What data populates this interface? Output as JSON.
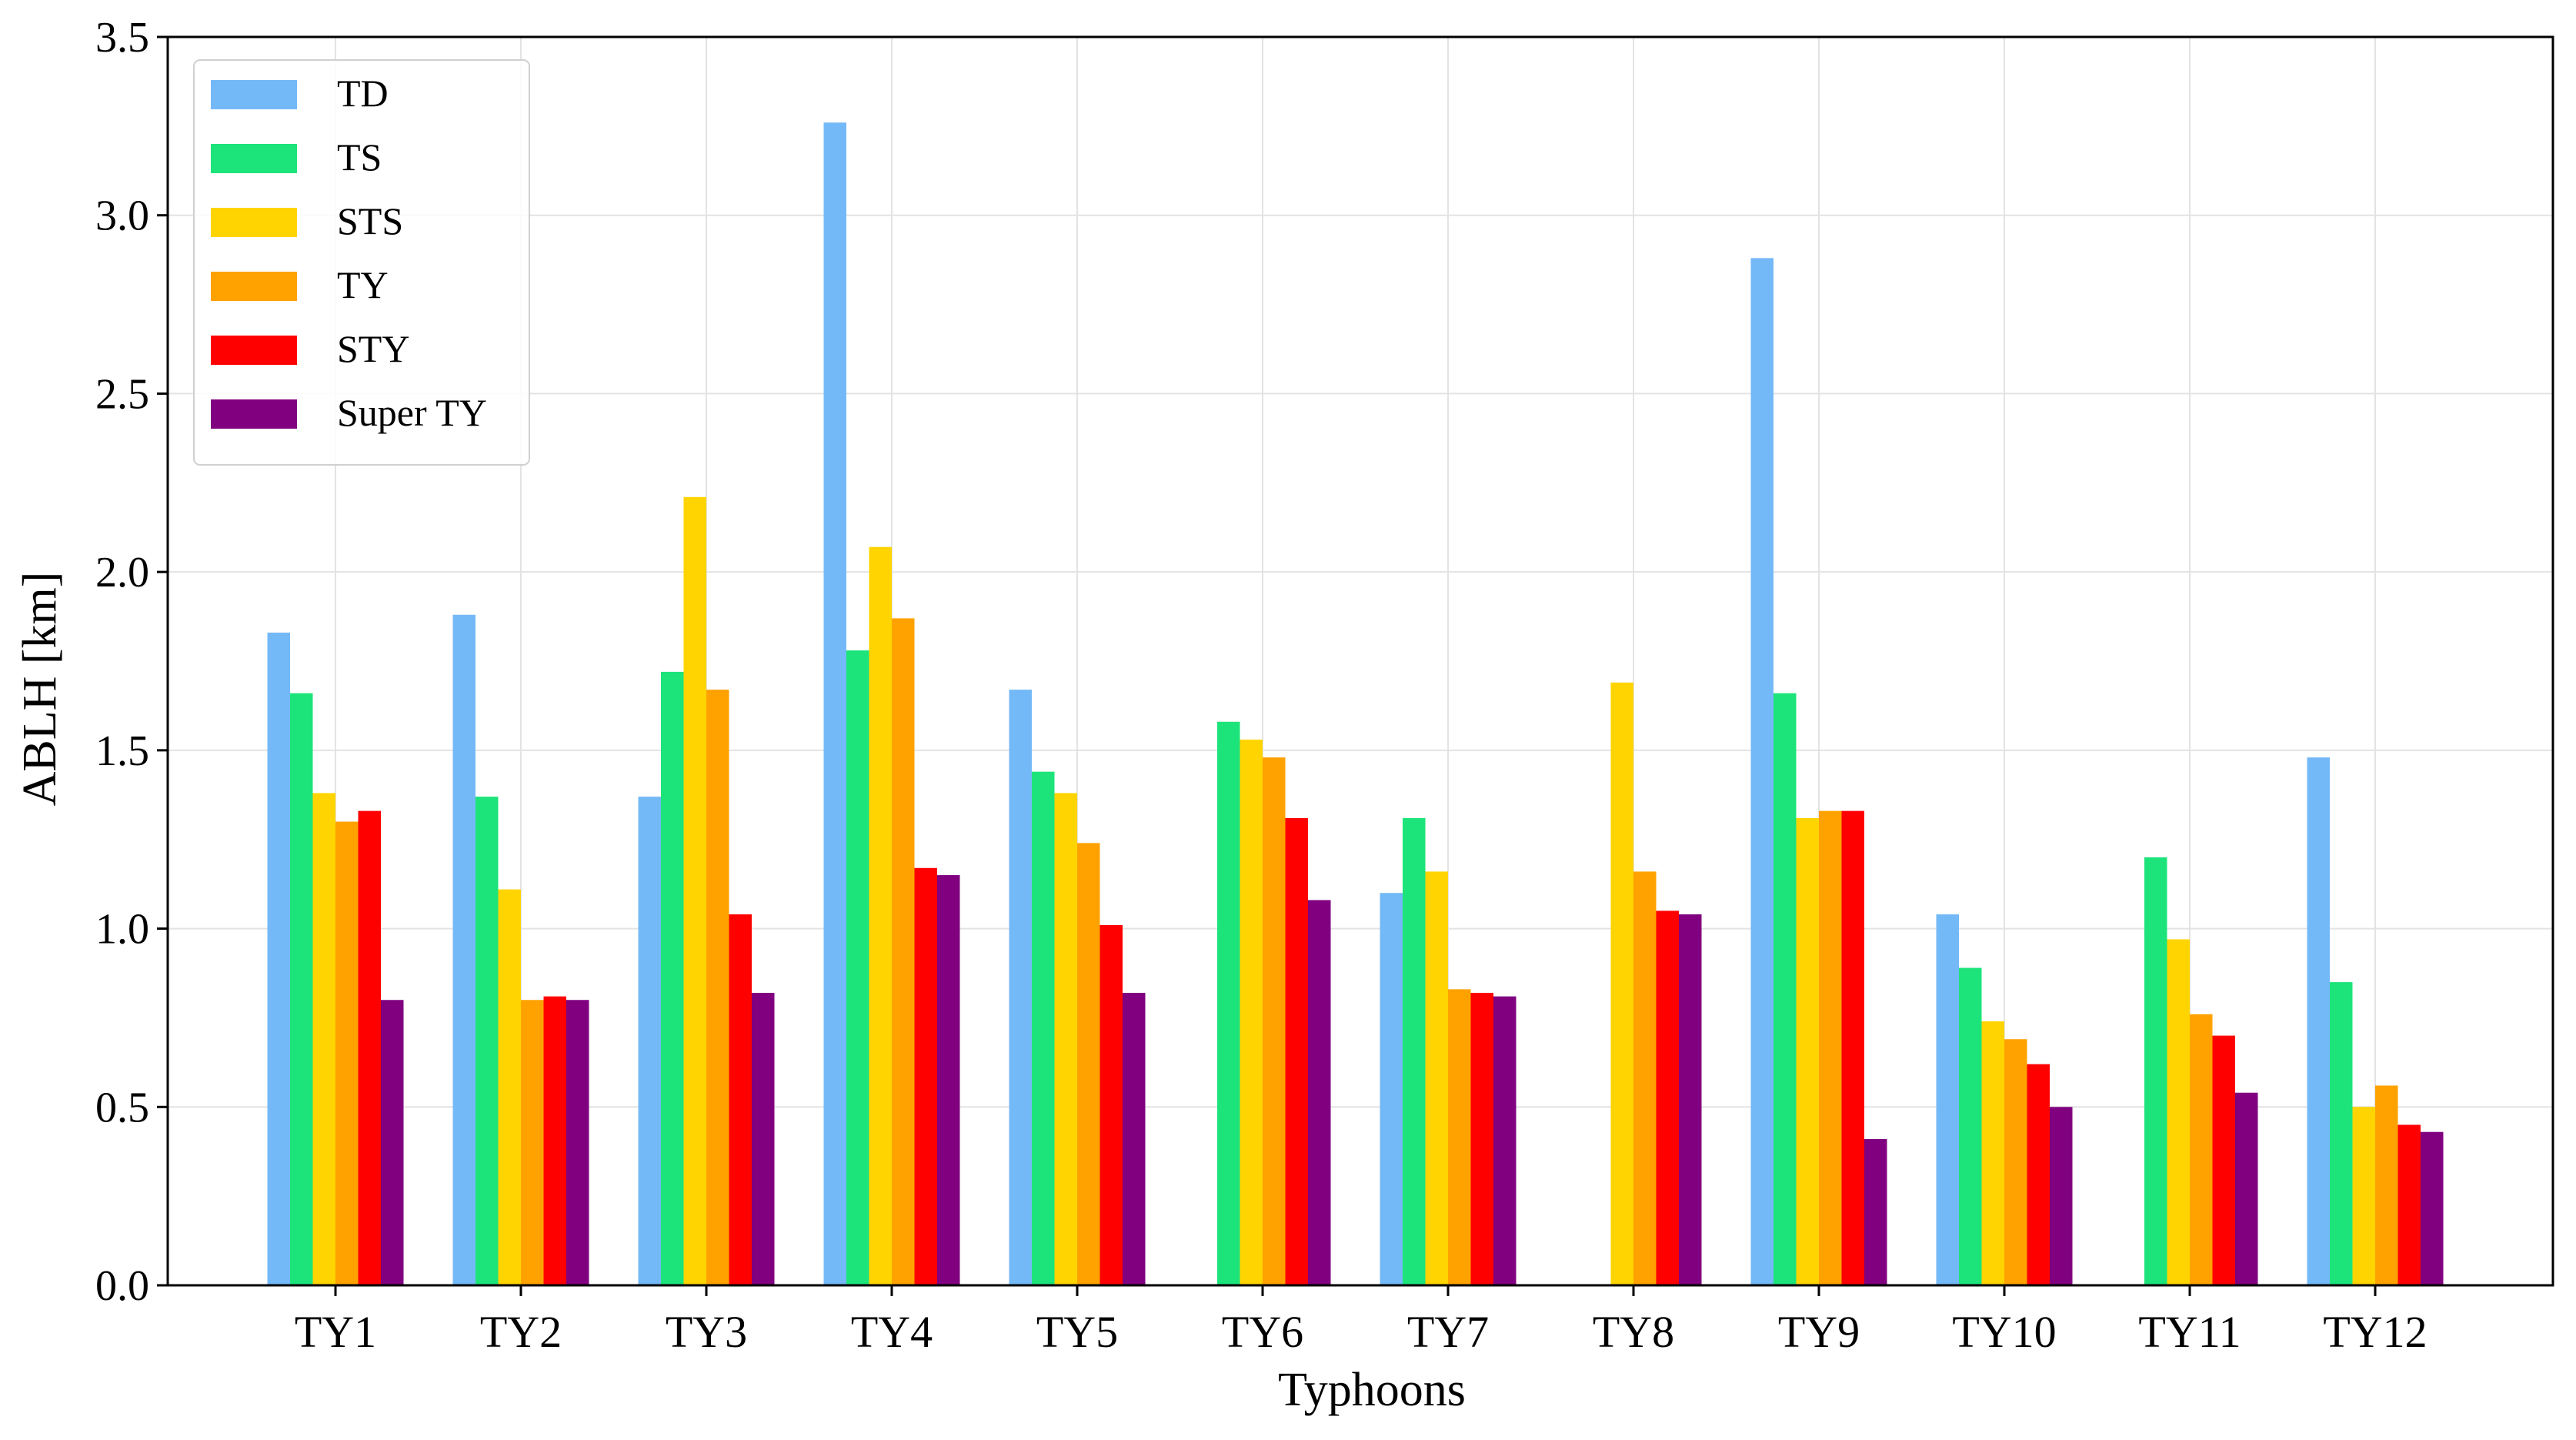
{
  "chart_data": {
    "type": "bar",
    "title": "",
    "xlabel": "Typhoons",
    "ylabel": "ABLH [km]",
    "ylim": [
      0,
      3.5
    ],
    "yticks": [
      "0.0",
      "0.5",
      "1.0",
      "1.5",
      "2.0",
      "2.5",
      "3.0",
      "3.5"
    ],
    "ytick_values": [
      0,
      0.5,
      1.0,
      1.5,
      2.0,
      2.5,
      3.0,
      3.5
    ],
    "grid": true,
    "legend_position": "top-left",
    "categories": [
      "TY1",
      "TY2",
      "TY3",
      "TY4",
      "TY5",
      "TY6",
      "TY7",
      "TY8",
      "TY9",
      "TY10",
      "TY11",
      "TY12"
    ],
    "series": [
      {
        "name": "TD",
        "color": "#74b9f7",
        "values": [
          1.83,
          1.88,
          1.37,
          3.26,
          1.67,
          null,
          1.1,
          null,
          2.88,
          1.04,
          null,
          1.48
        ]
      },
      {
        "name": "TS",
        "color": "#1de47a",
        "values": [
          1.66,
          1.37,
          1.72,
          1.78,
          1.44,
          1.58,
          1.31,
          null,
          1.66,
          0.89,
          1.2,
          0.85
        ]
      },
      {
        "name": "STS",
        "color": "#ffd400",
        "values": [
          1.38,
          1.11,
          2.21,
          2.07,
          1.38,
          1.53,
          1.16,
          1.69,
          1.31,
          0.74,
          0.97,
          0.5
        ]
      },
      {
        "name": "TY",
        "color": "#ffa200",
        "values": [
          1.3,
          0.8,
          1.67,
          1.87,
          1.24,
          1.48,
          0.83,
          1.16,
          1.33,
          0.69,
          0.76,
          0.56
        ]
      },
      {
        "name": "STY",
        "color": "#ff0000",
        "values": [
          1.33,
          0.81,
          1.04,
          1.17,
          1.01,
          1.31,
          0.82,
          1.05,
          1.33,
          0.62,
          0.7,
          0.45
        ]
      },
      {
        "name": "Super TY",
        "color": "#80007f",
        "values": [
          0.8,
          0.8,
          0.82,
          1.15,
          0.82,
          1.08,
          0.81,
          1.04,
          0.41,
          0.5,
          0.54,
          0.43
        ]
      }
    ]
  }
}
